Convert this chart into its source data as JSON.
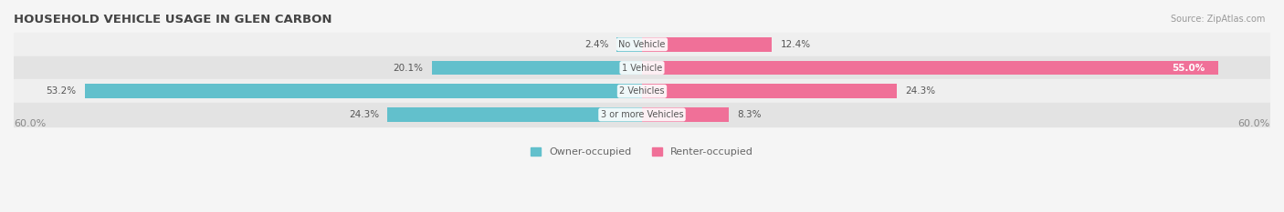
{
  "title": "HOUSEHOLD VEHICLE USAGE IN GLEN CARBON",
  "source": "Source: ZipAtlas.com",
  "categories": [
    "No Vehicle",
    "1 Vehicle",
    "2 Vehicles",
    "3 or more Vehicles"
  ],
  "owner_values": [
    2.4,
    20.1,
    53.2,
    24.3
  ],
  "renter_values": [
    12.4,
    55.0,
    24.3,
    8.3
  ],
  "owner_color": "#62c0cc",
  "renter_color": "#f07098",
  "axis_max": 60.0,
  "axis_label_left": "60.0%",
  "axis_label_right": "60.0%",
  "legend_owner": "Owner-occupied",
  "legend_renter": "Renter-occupied",
  "title_fontsize": 9.5,
  "source_fontsize": 7,
  "label_fontsize": 7.5,
  "category_fontsize": 7,
  "legend_fontsize": 8,
  "axis_tick_fontsize": 8,
  "background_color": "#f5f5f5",
  "bar_height": 0.62,
  "row_bg_light": "#efefef",
  "row_bg_dark": "#e3e3e3"
}
